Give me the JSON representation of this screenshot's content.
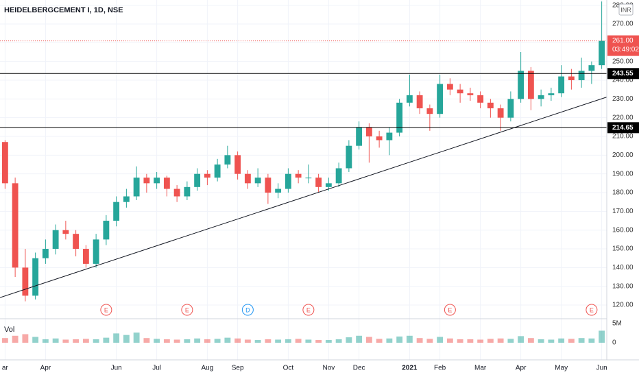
{
  "chart_data": {
    "type": "candlestick",
    "title": "HEIDELBERGCEMENT I, 1D, NSE",
    "currency": "INR",
    "categories": [
      "ar",
      null,
      null,
      null,
      "Apr",
      null,
      null,
      null,
      null,
      null,
      null,
      "Jun",
      null,
      null,
      null,
      "Jul",
      null,
      null,
      null,
      null,
      "Aug",
      null,
      null,
      "Sep",
      null,
      null,
      null,
      null,
      "Oct",
      null,
      null,
      null,
      "Nov",
      null,
      null,
      "Dec",
      null,
      null,
      null,
      null,
      "2021",
      null,
      null,
      "Feb",
      null,
      null,
      null,
      "Mar",
      null,
      null,
      null,
      "Apr",
      null,
      null,
      null,
      "May",
      null,
      null,
      null,
      "Jun"
    ],
    "open": [
      207,
      185,
      140,
      125,
      145,
      150,
      160,
      158,
      150,
      142,
      155,
      165,
      175,
      178,
      188,
      185,
      188,
      182,
      178,
      183,
      190,
      188,
      195,
      200,
      190,
      185,
      188,
      180,
      182,
      190,
      188,
      188,
      183,
      185,
      193,
      205,
      215,
      210,
      208,
      212,
      228,
      232,
      225,
      222,
      238,
      235,
      233,
      232,
      228,
      225,
      220,
      230,
      245,
      230,
      232,
      233,
      242,
      240,
      245,
      248
    ],
    "high": [
      208,
      188,
      150,
      148,
      155,
      163,
      165,
      160,
      152,
      158,
      168,
      178,
      182,
      194,
      190,
      191,
      189,
      184,
      186,
      193,
      192,
      198,
      205,
      202,
      192,
      193,
      190,
      185,
      193,
      192,
      195,
      190,
      188,
      196,
      208,
      218,
      217,
      213,
      215,
      230,
      243,
      234,
      227,
      243,
      241,
      238,
      236,
      234,
      230,
      227,
      234,
      255,
      247,
      235,
      236,
      248,
      246,
      252,
      250,
      282
    ],
    "low": [
      182,
      135,
      122,
      123,
      142,
      147,
      155,
      146,
      140,
      140,
      152,
      162,
      172,
      176,
      180,
      182,
      178,
      175,
      176,
      181,
      184,
      186,
      193,
      187,
      182,
      183,
      174,
      177,
      180,
      185,
      185,
      180,
      181,
      183,
      191,
      203,
      196,
      204,
      200,
      210,
      226,
      222,
      213,
      220,
      232,
      228,
      229,
      225,
      220,
      213,
      218,
      228,
      224,
      226,
      229,
      231,
      235,
      236,
      238,
      246
    ],
    "close": [
      185,
      140,
      125,
      145,
      150,
      160,
      158,
      150,
      142,
      155,
      165,
      175,
      178,
      188,
      185,
      188,
      182,
      178,
      183,
      190,
      188,
      195,
      200,
      190,
      185,
      188,
      180,
      182,
      190,
      188,
      188,
      183,
      185,
      193,
      205,
      215,
      210,
      208,
      212,
      228,
      232,
      225,
      222,
      238,
      235,
      233,
      232,
      228,
      225,
      220,
      230,
      245,
      230,
      232,
      233,
      242,
      240,
      245,
      248,
      261
    ],
    "up_color": "#26a69a",
    "down_color": "#ef5350",
    "ylim": [
      112.7,
      282.8
    ],
    "yticks": [
      {
        "value": 120,
        "label": "120.00"
      },
      {
        "value": 130,
        "label": "130.00"
      },
      {
        "value": 140,
        "label": "140.00"
      },
      {
        "value": 150,
        "label": "150.00"
      },
      {
        "value": 160,
        "label": "160.00"
      },
      {
        "value": 170,
        "label": "170.00"
      },
      {
        "value": 180,
        "label": "180.00"
      },
      {
        "value": 190,
        "label": "190.00"
      },
      {
        "value": 200,
        "label": "200.00"
      },
      {
        "value": 210,
        "label": "210.00"
      },
      {
        "value": 220,
        "label": "220.00"
      },
      {
        "value": 230,
        "label": "230.00"
      },
      {
        "value": 240,
        "label": "240.00"
      },
      {
        "value": 250,
        "label": "250.00"
      },
      {
        "value": 260,
        "label": "260.00"
      },
      {
        "value": 270,
        "label": "270.00"
      },
      {
        "value": 280,
        "label": "280.00"
      }
    ],
    "grid": true,
    "hlines": [
      243.55,
      214.65
    ],
    "last_price": {
      "value": 261,
      "label": "261.00"
    },
    "countdown": "03:49:02",
    "trendline": {
      "x": [
        -0.5,
        59.5
      ],
      "y": [
        124,
        231
      ]
    },
    "events": [
      {
        "label": "E",
        "index": 10,
        "color": "#ef5350"
      },
      {
        "label": "E",
        "index": 18,
        "color": "#ef5350"
      },
      {
        "label": "D",
        "index": 24,
        "color": "#2196f3"
      },
      {
        "label": "E",
        "index": 30,
        "color": "#ef5350"
      },
      {
        "label": "E",
        "index": 44,
        "color": "#ef5350"
      },
      {
        "label": "E",
        "index": 58,
        "color": "#ef5350"
      }
    ],
    "volume": {
      "title": "Vol",
      "values": [
        1200000,
        1800000,
        2200000,
        1500000,
        900000,
        1100000,
        800000,
        900000,
        1000000,
        900000,
        1300000,
        2400000,
        2000000,
        2600000,
        1200000,
        1000000,
        900000,
        800000,
        900000,
        1100000,
        900000,
        1000000,
        1300000,
        1100000,
        800000,
        700000,
        900000,
        800000,
        900000,
        1000000,
        800000,
        700000,
        700000,
        900000,
        1400000,
        1800000,
        1500000,
        1000000,
        1100000,
        1600000,
        1800000,
        1200000,
        1000000,
        1500000,
        1100000,
        900000,
        900000,
        800000,
        1000000,
        1100000,
        1000000,
        1700000,
        1200000,
        900000,
        800000,
        1100000,
        1000000,
        1200000,
        1100000,
        3100000
      ],
      "ylim": [
        0,
        6000000
      ],
      "yticks": [
        0,
        {
          "value": 5000000,
          "label": "5M"
        }
      ]
    }
  }
}
